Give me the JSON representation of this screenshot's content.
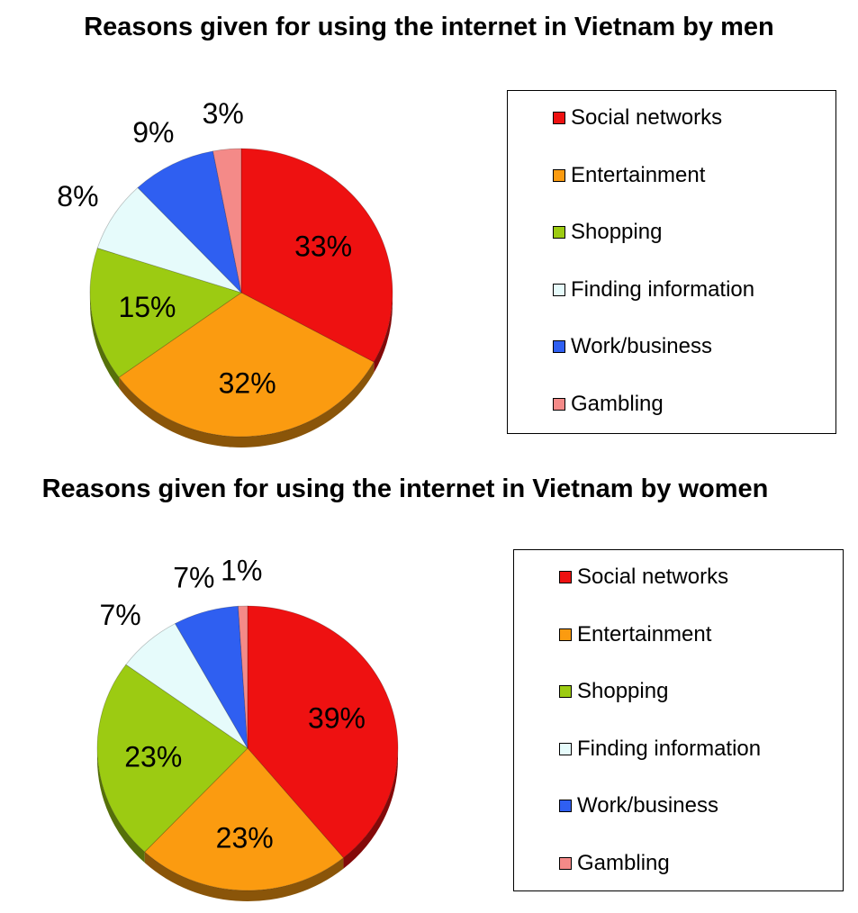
{
  "colors": {
    "Social networks": "#ee1111",
    "Entertainment": "#fb9b10",
    "Shopping": "#9ccb12",
    "Finding information": "#e6fbfb",
    "Work/business": "#2f5ff1",
    "Gambling": "#f48a88"
  },
  "chart_data": [
    {
      "type": "pie",
      "title": "Reasons given for using the internet in Vietnam by men",
      "legend_position": "right",
      "categories": [
        "Social networks",
        "Entertainment",
        "Shopping",
        "Finding information",
        "Work/business",
        "Gambling"
      ],
      "values": [
        33,
        32,
        15,
        8,
        9,
        3
      ],
      "labels": [
        "33%",
        "32%",
        "15%",
        "8%",
        "9%",
        "3%"
      ]
    },
    {
      "type": "pie",
      "title": "Reasons given for using the internet in Vietnam by women",
      "legend_position": "right",
      "categories": [
        "Social networks",
        "Entertainment",
        "Shopping",
        "Finding information",
        "Work/business",
        "Gambling"
      ],
      "values": [
        39,
        23,
        23,
        7,
        7,
        1
      ],
      "labels": [
        "39%",
        "23%",
        "23%",
        "7%",
        "7%",
        "1%"
      ]
    }
  ]
}
